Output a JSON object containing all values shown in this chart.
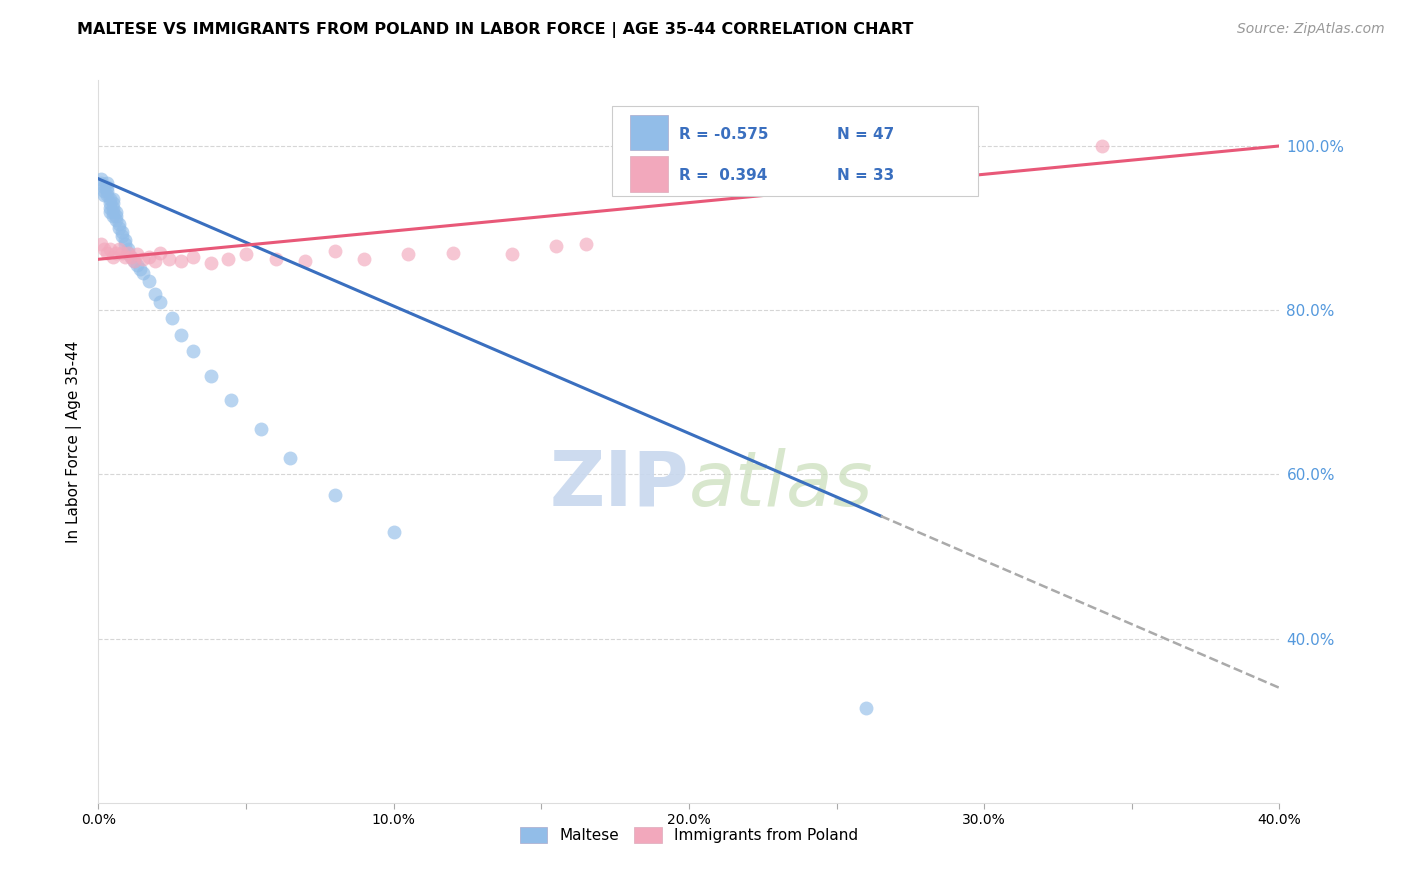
{
  "title": "MALTESE VS IMMIGRANTS FROM POLAND IN LABOR FORCE | AGE 35-44 CORRELATION CHART",
  "source_text": "Source: ZipAtlas.com",
  "ylabel": "In Labor Force | Age 35-44",
  "watermark_zip": "ZIP",
  "watermark_atlas": "atlas",
  "blue_color": "#92BDE8",
  "pink_color": "#F2A8BC",
  "blue_line_color": "#3A6FBF",
  "pink_line_color": "#E85878",
  "right_axis_color": "#5599DD",
  "xlim": [
    0.0,
    0.4
  ],
  "ylim": [
    0.2,
    1.08
  ],
  "right_yticks": [
    0.4,
    0.6,
    0.8,
    1.0
  ],
  "right_yticklabels": [
    "40.0%",
    "60.0%",
    "80.0%",
    "100.0%"
  ],
  "xticks": [
    0.0,
    0.05,
    0.1,
    0.15,
    0.2,
    0.25,
    0.3,
    0.35,
    0.4
  ],
  "xticklabels": [
    "0.0%",
    "",
    "10.0%",
    "",
    "20.0%",
    "",
    "30.0%",
    "",
    "40.0%"
  ],
  "grid_color": "#CCCCCC",
  "background_color": "#FFFFFF",
  "blue_scatter_x": [
    0.001,
    0.001,
    0.002,
    0.002,
    0.002,
    0.003,
    0.003,
    0.003,
    0.003,
    0.004,
    0.004,
    0.004,
    0.004,
    0.005,
    0.005,
    0.005,
    0.005,
    0.005,
    0.006,
    0.006,
    0.006,
    0.007,
    0.007,
    0.008,
    0.008,
    0.009,
    0.009,
    0.01,
    0.01,
    0.011,
    0.012,
    0.013,
    0.014,
    0.015,
    0.017,
    0.019,
    0.021,
    0.025,
    0.028,
    0.032,
    0.038,
    0.045,
    0.055,
    0.065,
    0.08,
    0.1,
    0.26
  ],
  "blue_scatter_y": [
    0.96,
    0.955,
    0.95,
    0.945,
    0.94,
    0.955,
    0.95,
    0.945,
    0.94,
    0.935,
    0.93,
    0.925,
    0.92,
    0.935,
    0.93,
    0.925,
    0.92,
    0.915,
    0.92,
    0.915,
    0.91,
    0.905,
    0.9,
    0.895,
    0.89,
    0.885,
    0.88,
    0.875,
    0.87,
    0.865,
    0.86,
    0.855,
    0.85,
    0.845,
    0.835,
    0.82,
    0.81,
    0.79,
    0.77,
    0.75,
    0.72,
    0.69,
    0.655,
    0.62,
    0.575,
    0.53,
    0.315
  ],
  "pink_scatter_x": [
    0.001,
    0.002,
    0.003,
    0.004,
    0.005,
    0.006,
    0.007,
    0.008,
    0.009,
    0.01,
    0.011,
    0.012,
    0.013,
    0.015,
    0.017,
    0.019,
    0.021,
    0.024,
    0.028,
    0.032,
    0.038,
    0.044,
    0.05,
    0.06,
    0.07,
    0.08,
    0.09,
    0.105,
    0.12,
    0.14,
    0.155,
    0.165,
    0.34
  ],
  "pink_scatter_y": [
    0.88,
    0.875,
    0.87,
    0.875,
    0.865,
    0.87,
    0.875,
    0.87,
    0.865,
    0.87,
    0.865,
    0.86,
    0.868,
    0.862,
    0.865,
    0.86,
    0.87,
    0.862,
    0.86,
    0.865,
    0.858,
    0.862,
    0.868,
    0.862,
    0.86,
    0.872,
    0.862,
    0.868,
    0.87,
    0.868,
    0.878,
    0.88,
    1.0
  ],
  "blue_line_x0": 0.0,
  "blue_line_y0": 0.96,
  "blue_line_slope": -1.55,
  "blue_line_solid_end": 0.265,
  "blue_line_dashed_end": 0.4,
  "pink_line_x0": 0.0,
  "pink_line_y0": 0.862,
  "pink_line_slope": 0.345,
  "title_fontsize": 11.5,
  "axis_label_fontsize": 11,
  "tick_fontsize": 10,
  "source_fontsize": 10,
  "watermark_fontsize": 55,
  "scatter_size": 100
}
